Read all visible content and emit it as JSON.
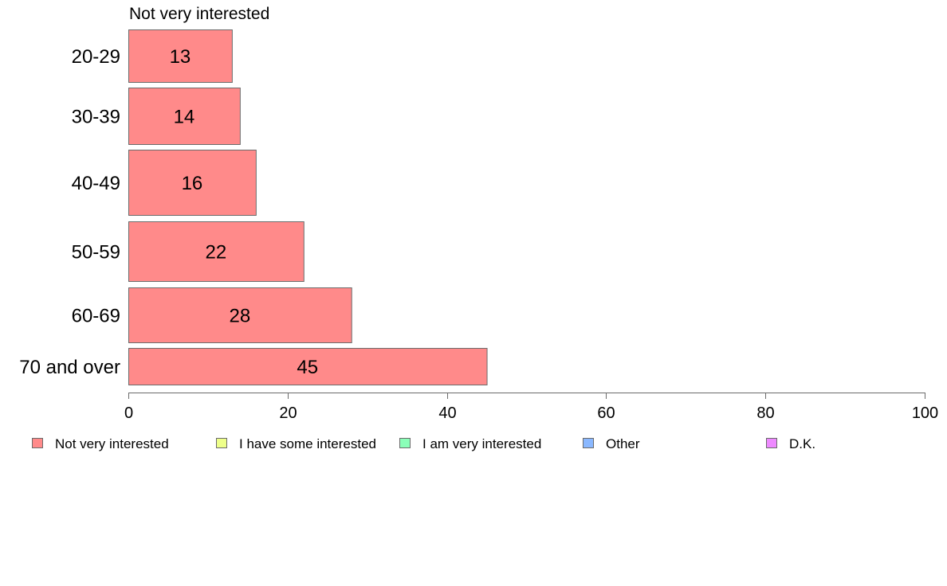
{
  "chart_data": {
    "type": "bar",
    "orientation": "horizontal",
    "title": "Not very interested",
    "categories": [
      "20-29",
      "30-39",
      "40-49",
      "50-59",
      "60-69",
      "70 and over"
    ],
    "series": [
      {
        "name": "Not very interested",
        "values": [
          13,
          14,
          16,
          22,
          28,
          45
        ],
        "color": "#ff8a8a"
      }
    ],
    "data_labels": [
      "13",
      "14",
      "16",
      "22",
      "28",
      "45"
    ],
    "xlim": [
      0,
      100
    ],
    "xticks": [
      0,
      20,
      40,
      60,
      80,
      100
    ],
    "xtick_labels": [
      "0",
      "20",
      "40",
      "60",
      "80",
      "100"
    ],
    "grid": false,
    "legend_position": "bottom",
    "legend": [
      {
        "label": "Not very interested",
        "color": "#ff8a8a"
      },
      {
        "label": "I have some interested",
        "color": "#eeff8a"
      },
      {
        "label": "I am very interested",
        "color": "#8affb8"
      },
      {
        "label": "Other",
        "color": "#8ab8ff"
      },
      {
        "label": "D.K.",
        "color": "#ee8aff"
      }
    ]
  }
}
